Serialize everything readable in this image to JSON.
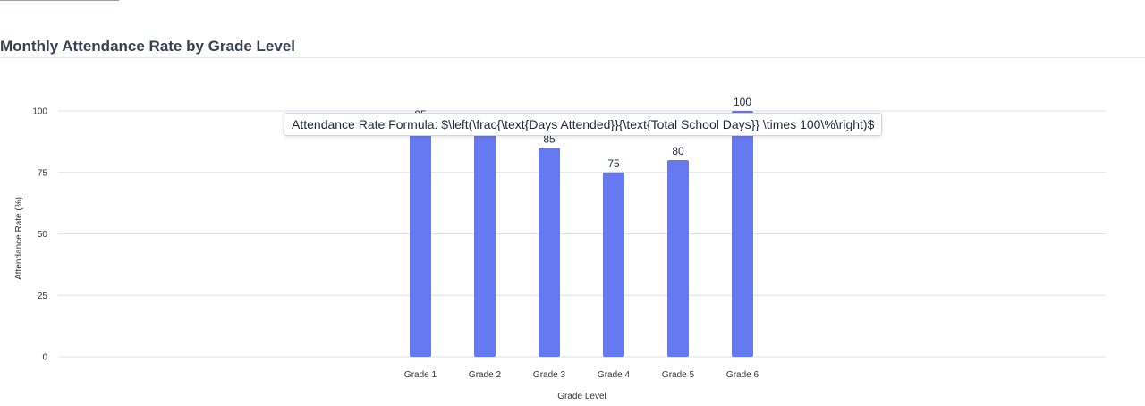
{
  "header": {
    "title": "Monthly Attendance Rate by Grade Level"
  },
  "tooltip": {
    "text": "Attendance Rate Formula: $\\left(\\frac{\\text{Days Attended}}{\\text{Total School Days}} \\times 100\\%\\right)$"
  },
  "colors": {
    "bar": "#6579f0",
    "grid": "#e0e0e0",
    "axis_text": "#333333"
  },
  "chart_data": {
    "type": "bar",
    "categories": [
      "Grade 1",
      "Grade 2",
      "Grade 3",
      "Grade 4",
      "Grade 5",
      "Grade 6"
    ],
    "values": [
      95,
      92,
      85,
      75,
      80,
      100
    ],
    "xlabel": "Grade Level",
    "ylabel": "Attendance Rate (%)",
    "ylim": [
      0,
      100
    ],
    "yticks": [
      0,
      25,
      50,
      75,
      100
    ],
    "grid": true,
    "show_value_labels": true
  }
}
